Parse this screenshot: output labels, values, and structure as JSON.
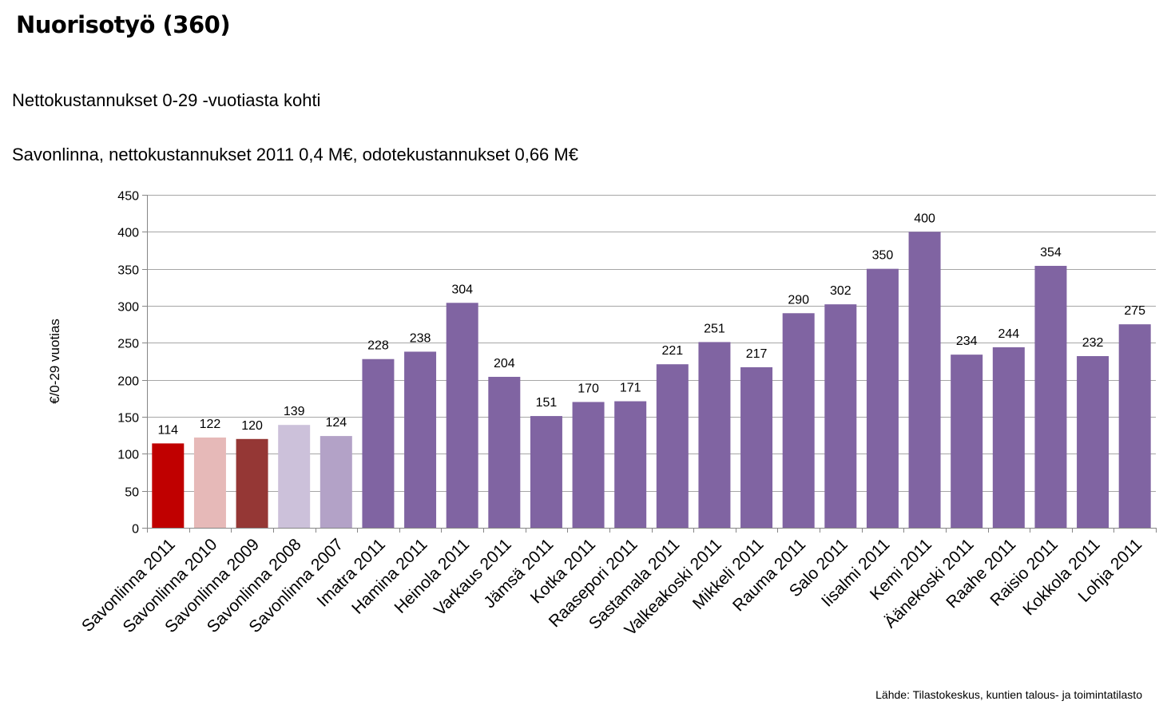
{
  "header": {
    "title": "Nuorisotyö (360)",
    "subtitle1": "Nettokustannukset 0-29 -vuotiasta kohti",
    "subtitle2": "Savonlinna, nettokustannukset 2011 0,4 M€, odotekustannukset 0,66 M€"
  },
  "footer": {
    "source": "Lähde: Tilastokeskus,  kuntien talous- ja toimintatilasto"
  },
  "chart_data": {
    "type": "bar",
    "title": "",
    "xlabel": "",
    "ylabel": "€/0-29 vuotias",
    "ylim": [
      0,
      450
    ],
    "yticks": [
      0,
      50,
      100,
      150,
      200,
      250,
      300,
      350,
      400,
      450
    ],
    "grid": true,
    "legend": "none",
    "categories": [
      "Savonlinna 2011",
      "Savonlinna 2010",
      "Savonlinna 2009",
      "Savonlinna 2008",
      "Savonlinna 2007",
      "Imatra 2011",
      "Hamina 2011",
      "Heinola 2011",
      "Varkaus 2011",
      "Jämsä 2011",
      "Kotka 2011",
      "Raasepori 2011",
      "Sastamala 2011",
      "Valkeakoski 2011",
      "Mikkeli 2011",
      "Rauma 2011",
      "Salo 2011",
      "Iisalmi 2011",
      "Kemi 2011",
      "Äänekoski 2011",
      "Raahe 2011",
      "Raisio 2011",
      "Kokkola 2011",
      "Lohja 2011"
    ],
    "values": [
      114,
      122,
      120,
      139,
      124,
      228,
      238,
      304,
      204,
      151,
      170,
      171,
      221,
      251,
      217,
      290,
      302,
      350,
      400,
      234,
      244,
      354,
      232,
      275
    ],
    "colors": [
      "#C00000",
      "#E6B9B8",
      "#953735",
      "#CCC1DA",
      "#B3A2C7",
      "#8064A2",
      "#8064A2",
      "#8064A2",
      "#8064A2",
      "#8064A2",
      "#8064A2",
      "#8064A2",
      "#8064A2",
      "#8064A2",
      "#8064A2",
      "#8064A2",
      "#8064A2",
      "#8064A2",
      "#8064A2",
      "#8064A2",
      "#8064A2",
      "#8064A2",
      "#8064A2",
      "#8064A2"
    ],
    "gridColor": "#A6A6A6"
  }
}
